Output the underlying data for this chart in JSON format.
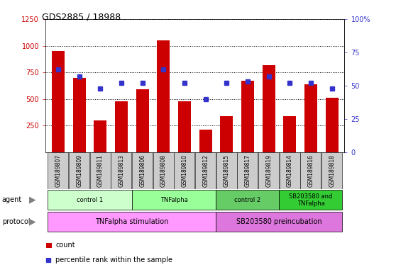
{
  "title": "GDS2885 / 18988",
  "samples": [
    "GSM189807",
    "GSM189809",
    "GSM189811",
    "GSM189813",
    "GSM189806",
    "GSM189808",
    "GSM189810",
    "GSM189812",
    "GSM189815",
    "GSM189817",
    "GSM189819",
    "GSM189814",
    "GSM189816",
    "GSM189818"
  ],
  "counts": [
    950,
    700,
    300,
    480,
    590,
    1050,
    480,
    210,
    340,
    670,
    820,
    340,
    640,
    510
  ],
  "percentile_ranks": [
    62,
    57,
    48,
    52,
    52,
    62,
    52,
    40,
    52,
    53,
    57,
    52,
    52,
    48
  ],
  "ylim_left": [
    0,
    1250
  ],
  "ylim_right": [
    0,
    100
  ],
  "yticks_left": [
    250,
    500,
    750,
    1000,
    1250
  ],
  "yticks_right": [
    0,
    25,
    50,
    75,
    100
  ],
  "bar_color": "#cc0000",
  "dot_color": "#3333cc",
  "agent_groups": [
    {
      "label": "control 1",
      "start": 0,
      "end": 4,
      "color": "#ccffcc"
    },
    {
      "label": "TNFalpha",
      "start": 4,
      "end": 8,
      "color": "#99ff99"
    },
    {
      "label": "control 2",
      "start": 8,
      "end": 11,
      "color": "#66cc66"
    },
    {
      "label": "SB203580 and\nTNFalpha",
      "start": 11,
      "end": 14,
      "color": "#33cc33"
    }
  ],
  "protocol_groups": [
    {
      "label": "TNFalpha stimulation",
      "start": 0,
      "end": 8,
      "color": "#ff99ff"
    },
    {
      "label": "SB203580 preincubation",
      "start": 8,
      "end": 14,
      "color": "#dd77dd"
    }
  ],
  "bg_color": "#ffffff",
  "tick_label_bg": "#cccccc",
  "left_label_color": "#cc0000",
  "right_label_color": "#3333cc"
}
